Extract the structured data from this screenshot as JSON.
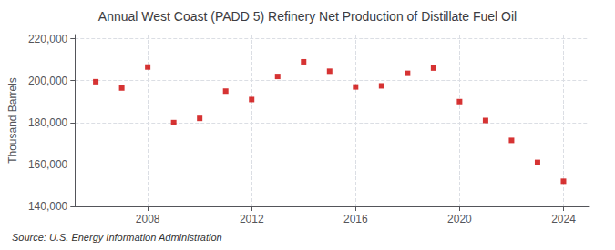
{
  "chart_data": {
    "type": "scatter",
    "title": "Annual West Coast (PADD 5) Refinery Net Production of Distillate Fuel Oil",
    "ylabel": "Thousand Barrels",
    "source": "Source: U.S. Energy Information Administration",
    "x": [
      2006,
      2007,
      2008,
      2009,
      2010,
      2011,
      2012,
      2013,
      2014,
      2015,
      2016,
      2017,
      2018,
      2019,
      2020,
      2021,
      2022,
      2023,
      2024
    ],
    "values": [
      199500,
      196500,
      206500,
      180000,
      182000,
      195000,
      191000,
      202000,
      209000,
      204500,
      197000,
      197500,
      203500,
      206000,
      190000,
      181000,
      171500,
      161000,
      152000
    ],
    "color": "#cc0000",
    "marker": "square",
    "xlim": [
      2005.2,
      2025.0
    ],
    "ylim": [
      140000,
      222000
    ],
    "xticks": [
      2008,
      2012,
      2016,
      2020,
      2024
    ],
    "yticks": [
      {
        "value": 140000,
        "label": "140,000"
      },
      {
        "value": 160000,
        "label": "160,000"
      },
      {
        "value": 180000,
        "label": "180,000"
      },
      {
        "value": 200000,
        "label": "200,000"
      },
      {
        "value": 220000,
        "label": "220,000"
      }
    ],
    "grid": true
  }
}
